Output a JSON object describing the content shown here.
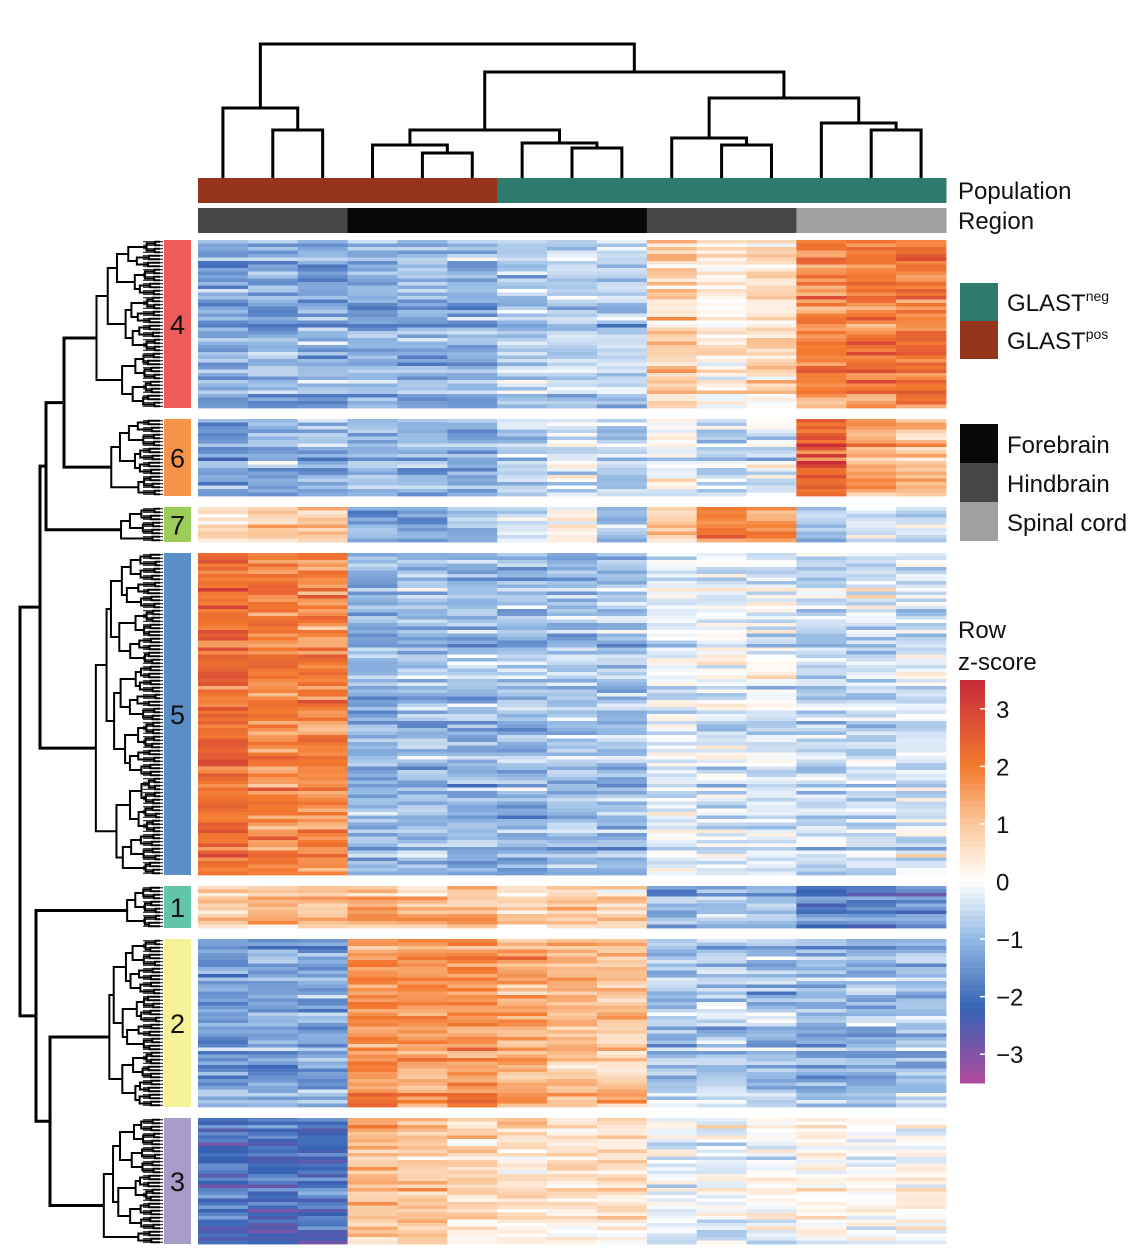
{
  "chart_data": {
    "type": "heatmap",
    "title": "",
    "annotation_labels": {
      "population": "Population",
      "region": "Region"
    },
    "columns": [
      {
        "population": "GLAST_pos",
        "region": "Hindbrain"
      },
      {
        "population": "GLAST_pos",
        "region": "Hindbrain"
      },
      {
        "population": "GLAST_pos",
        "region": "Hindbrain"
      },
      {
        "population": "GLAST_pos",
        "region": "Forebrain"
      },
      {
        "population": "GLAST_pos",
        "region": "Forebrain"
      },
      {
        "population": "GLAST_pos",
        "region": "Forebrain"
      },
      {
        "population": "GLAST_neg",
        "region": "Forebrain"
      },
      {
        "population": "GLAST_neg",
        "region": "Forebrain"
      },
      {
        "population": "GLAST_neg",
        "region": "Forebrain"
      },
      {
        "population": "GLAST_neg",
        "region": "Hindbrain"
      },
      {
        "population": "GLAST_neg",
        "region": "Hindbrain"
      },
      {
        "population": "GLAST_neg",
        "region": "Hindbrain"
      },
      {
        "population": "GLAST_neg",
        "region": "Spinal cord"
      },
      {
        "population": "GLAST_neg",
        "region": "Spinal cord"
      },
      {
        "population": "GLAST_neg",
        "region": "Spinal cord"
      }
    ],
    "clusters": [
      {
        "label": "4",
        "color": "#ee5b5b",
        "rows": 48,
        "profile": [
          -1.3,
          -1.2,
          -1.2,
          -1.1,
          -1.1,
          -1.1,
          -0.7,
          -0.6,
          -0.7,
          0.9,
          0.3,
          0.6,
          1.8,
          2.0,
          2.1
        ]
      },
      {
        "label": "6",
        "color": "#f7944a",
        "rows": 22,
        "profile": [
          -1.2,
          -1.0,
          -1.0,
          -0.9,
          -1.0,
          -1.0,
          -0.6,
          -0.3,
          -0.6,
          0.1,
          -0.4,
          -0.3,
          2.6,
          1.6,
          1.2
        ]
      },
      {
        "label": "7",
        "color": "#9ccc5a",
        "rows": 10,
        "profile": [
          0.7,
          0.9,
          1.1,
          -1.3,
          -1.1,
          -0.9,
          -0.2,
          0.2,
          -0.8,
          1.1,
          2.1,
          1.6,
          -0.7,
          -0.2,
          -0.4
        ]
      },
      {
        "label": "5",
        "color": "#5b8fc8",
        "rows": 92,
        "profile": [
          2.2,
          1.9,
          1.8,
          -1.1,
          -0.9,
          -1.0,
          -1.0,
          -0.9,
          -0.9,
          -0.3,
          -0.2,
          -0.3,
          -0.6,
          -0.5,
          -0.4
        ]
      },
      {
        "label": "1",
        "color": "#62c5a8",
        "rows": 12,
        "profile": [
          0.9,
          1.0,
          1.2,
          1.2,
          1.0,
          1.0,
          0.8,
          0.9,
          0.5,
          -1.1,
          -0.9,
          -1.0,
          -1.9,
          -1.8,
          -1.8
        ]
      },
      {
        "label": "2",
        "color": "#f6f29a",
        "rows": 48,
        "profile": [
          -1.4,
          -1.3,
          -1.3,
          1.7,
          1.5,
          1.7,
          1.3,
          1.1,
          1.0,
          -0.8,
          -0.7,
          -0.9,
          -1.0,
          -1.0,
          -0.9
        ]
      },
      {
        "label": "3",
        "color": "#a89dc9",
        "rows": 36,
        "profile": [
          -2.0,
          -2.1,
          -2.0,
          1.1,
          1.0,
          0.8,
          0.6,
          0.5,
          0.6,
          -0.1,
          0.0,
          0.0,
          0.2,
          0.1,
          0.2
        ]
      }
    ],
    "legend": {
      "population": [
        {
          "key": "GLAST_neg",
          "base": "GLAST",
          "sup": "neg",
          "color": "#2e7b6d"
        },
        {
          "key": "GLAST_pos",
          "base": "GLAST",
          "sup": "pos",
          "color": "#97341c"
        }
      ],
      "region": [
        {
          "key": "Forebrain",
          "label": "Forebrain",
          "color": "#080808"
        },
        {
          "key": "Hindbrain",
          "label": "Hindbrain",
          "color": "#464646"
        },
        {
          "key": "Spinal cord",
          "label": "Spinal cord",
          "color": "#a0a0a0"
        }
      ]
    },
    "colorbar": {
      "title_line1": "Row",
      "title_line2": "z-score",
      "range": [
        -3.5,
        3.5
      ],
      "ticks": [
        3,
        2,
        1,
        0,
        -1,
        -2,
        -3
      ],
      "tick_labels": [
        "3",
        "2",
        "1",
        "0",
        "−1",
        "−2",
        "−3"
      ],
      "stops": [
        {
          "value": 3.5,
          "color": "#c6283a"
        },
        {
          "value": 2.0,
          "color": "#f47a2f"
        },
        {
          "value": 1.0,
          "color": "#fbc89c"
        },
        {
          "value": 0.0,
          "color": "#ffffff"
        },
        {
          "value": -1.0,
          "color": "#93b9e4"
        },
        {
          "value": -2.2,
          "color": "#3562b4"
        },
        {
          "value": -3.5,
          "color": "#b14a9e"
        }
      ]
    },
    "column_dendrogram": [
      [
        0,
        0,
        1,
        0
      ],
      [
        1,
        0,
        2,
        0
      ],
      [
        2,
        3,
        4,
        0
      ],
      [
        3,
        5,
        6,
        0
      ],
      [
        4,
        7,
        8,
        0
      ],
      [
        5,
        9,
        10,
        0
      ],
      [
        6,
        11,
        12,
        0
      ],
      [
        7,
        13,
        14,
        0
      ]
    ]
  }
}
